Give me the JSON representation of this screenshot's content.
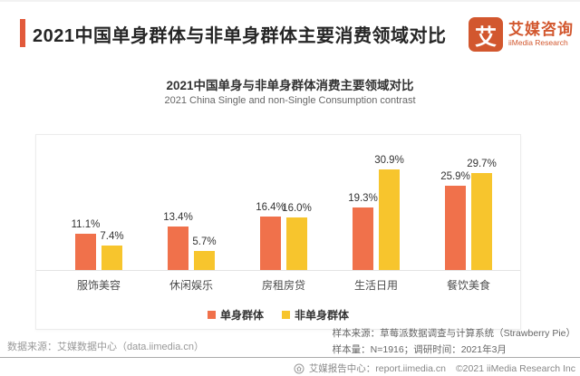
{
  "header": {
    "title": "2021中国单身群体与非单身群体主要消费领域对比",
    "logo": {
      "mark": "艾",
      "name_cn": "艾媒咨询",
      "name_en": "iiMedia Research"
    }
  },
  "chart": {
    "title_cn": "2021中国单身与非单身群体消费主要领域对比",
    "title_en": "2021 China Single and non-Single Consumption contrast"
  },
  "chart_data": {
    "type": "bar",
    "title": "2021中国单身与非单身群体消费主要领域对比",
    "subtitle": "2021 China Single and non-Single Consumption contrast",
    "categories": [
      "服饰美容",
      "休闲娱乐",
      "房租房贷",
      "生活日用",
      "餐饮美食"
    ],
    "series": [
      {
        "name": "单身群体",
        "color": "#F0714B",
        "values": [
          11.1,
          13.4,
          16.4,
          19.3,
          25.9
        ]
      },
      {
        "name": "非单身群体",
        "color": "#F7C52D",
        "values": [
          7.4,
          5.7,
          16.0,
          30.9,
          29.7
        ]
      }
    ],
    "value_suffix": "%",
    "ylim": [
      0,
      35
    ],
    "grid": false,
    "legend_position": "bottom"
  },
  "footnotes": {
    "source_left": "数据来源：艾媒数据中心（data.iimedia.cn）",
    "sample_source": "样本来源：草莓派数据调查与计算系统（Strawberry Pie）",
    "sample_info": "样本量：N=1916；调研时间：2021年3月"
  },
  "footer": {
    "report_center": "艾媒报告中心：report.iimedia.cn",
    "copyright": "©2021  iiMedia Research Inc"
  },
  "colors": {
    "accent": "#E25A3B",
    "logo": "#D2572E",
    "bar_single": "#F0714B",
    "bar_nonsingle": "#F7C52D"
  }
}
